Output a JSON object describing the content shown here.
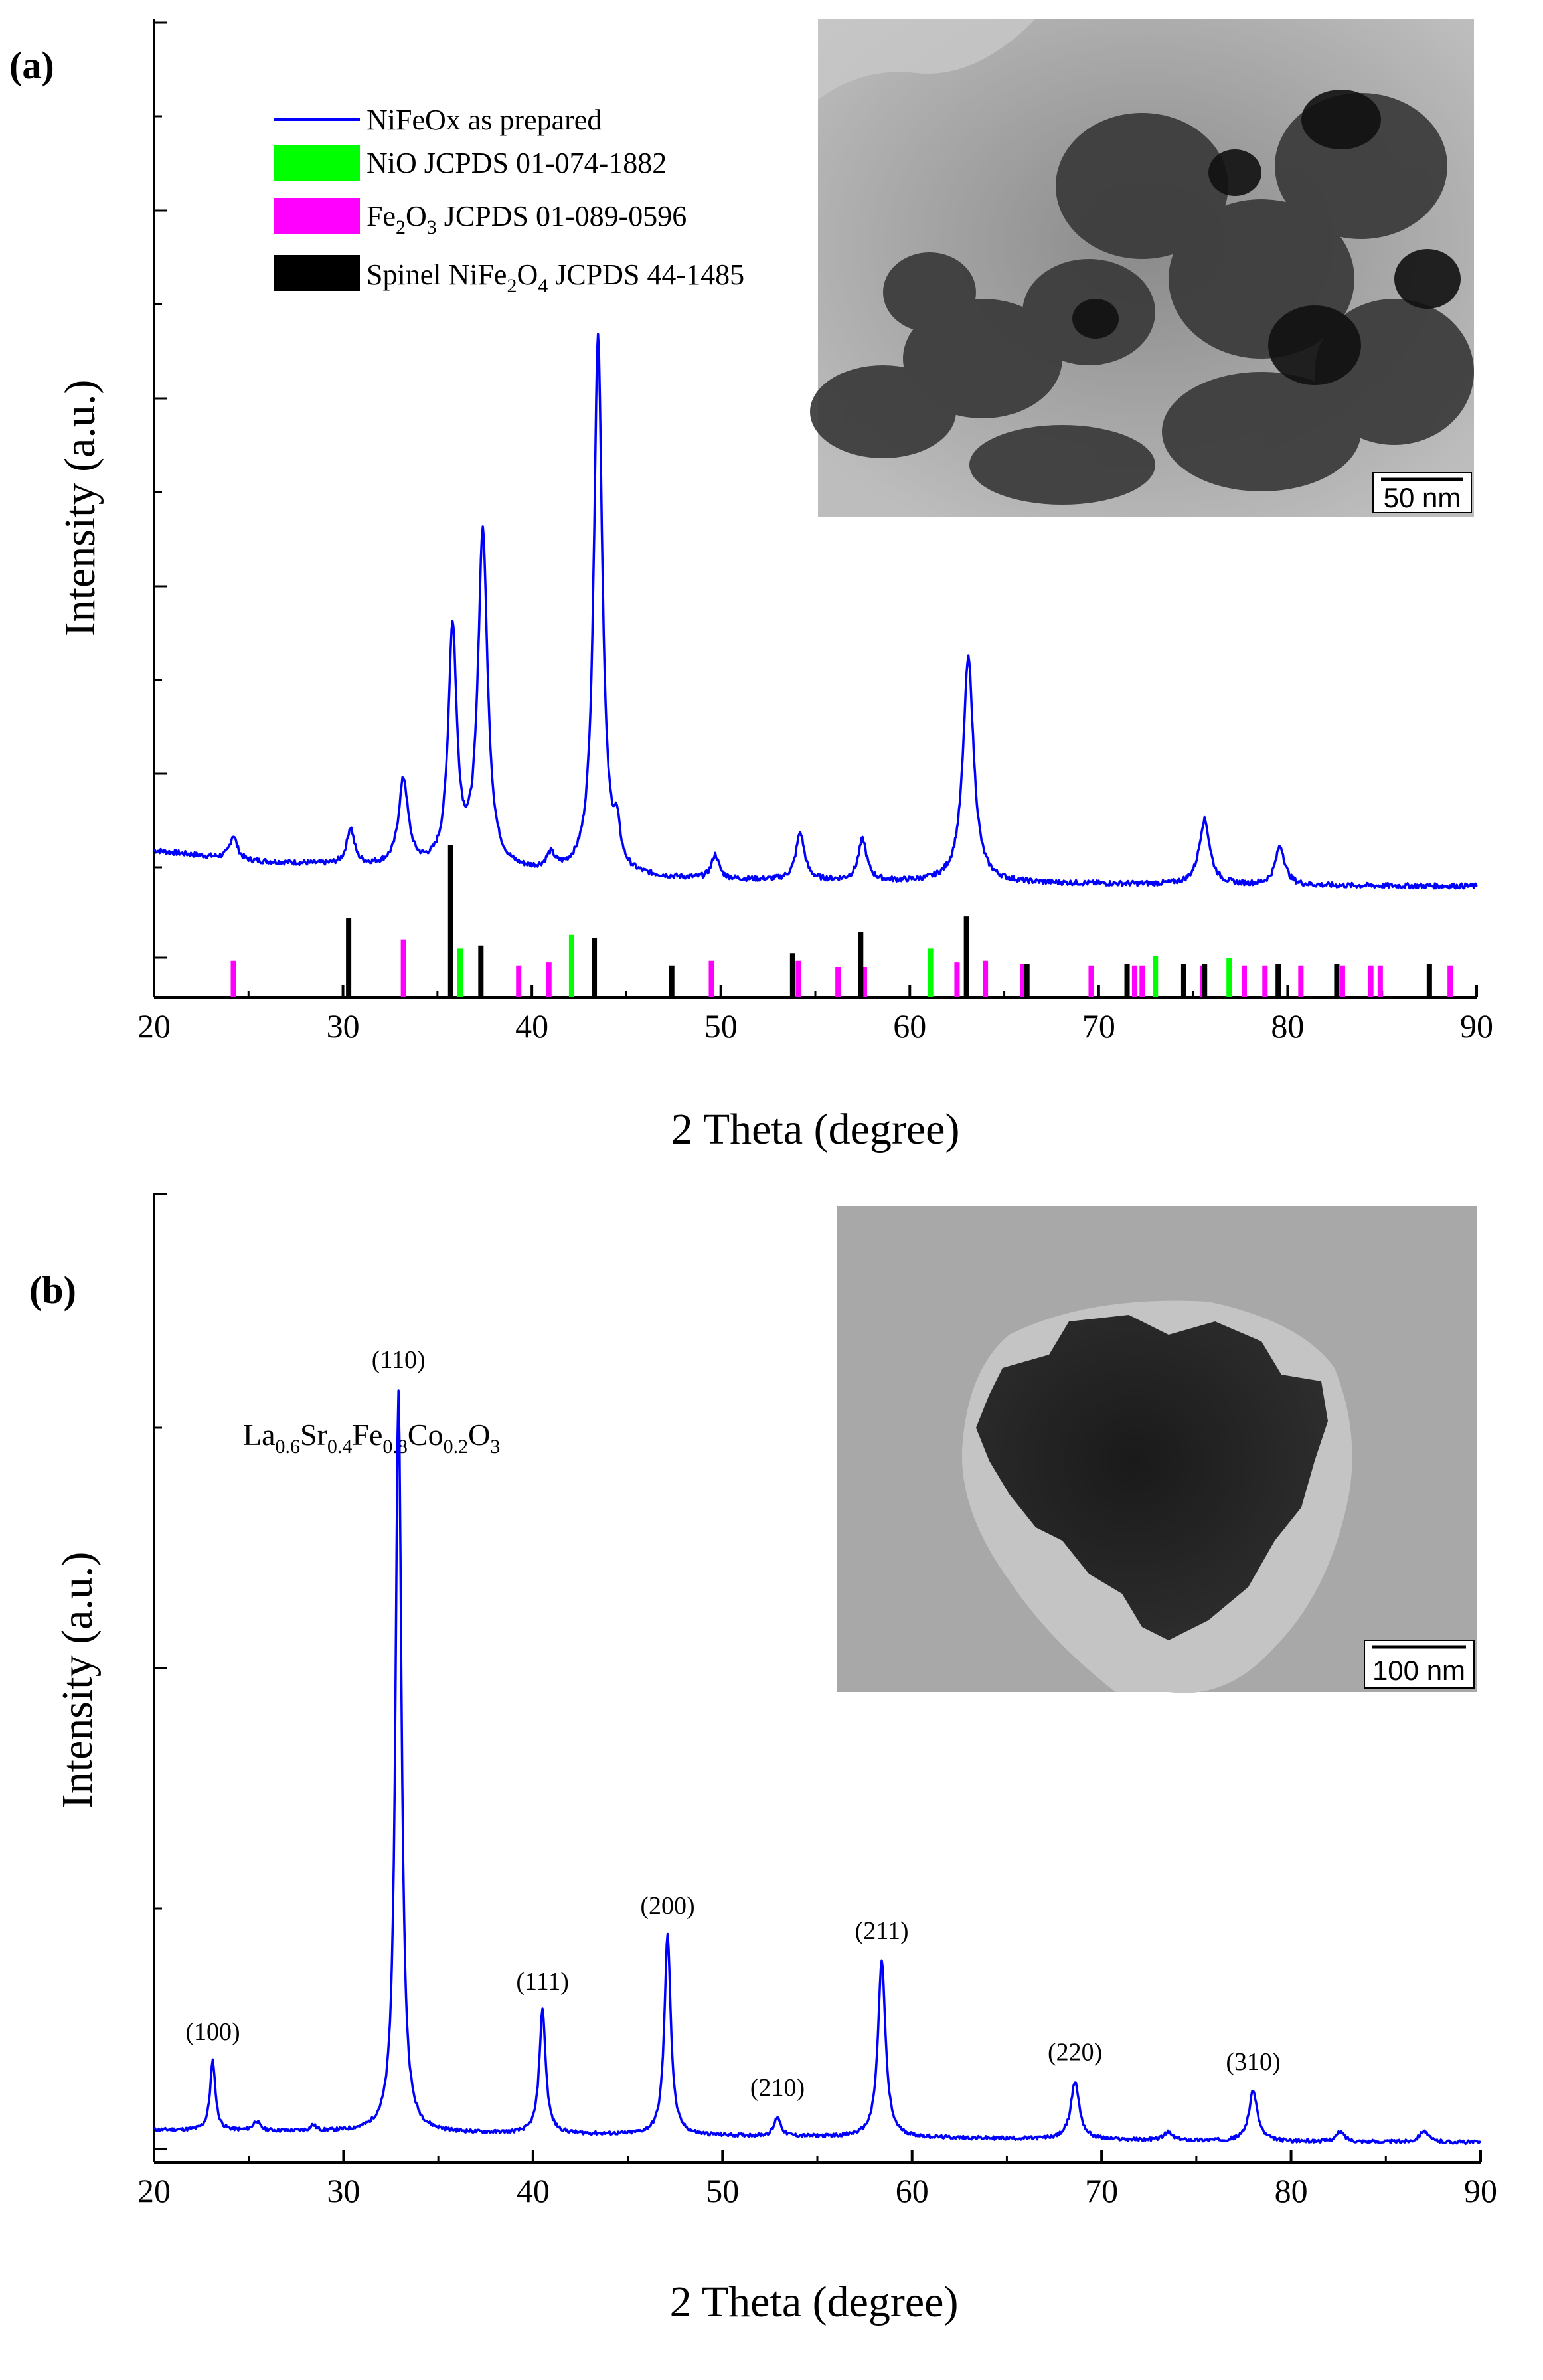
{
  "chart_data": [
    {
      "panel": "(a)",
      "type": "line",
      "xlabel": "2 Theta (degree)",
      "ylabel": "Intensity (a.u.)",
      "xlim": [
        20,
        90
      ],
      "xticks": [
        20,
        30,
        40,
        50,
        60,
        70,
        80,
        90
      ],
      "legend": [
        {
          "label": "NiFeOx as prepared",
          "color": "#0000ff",
          "kind": "line"
        },
        {
          "label_main": "NiO JCPDS 01-074-1882",
          "color": "#00ff00",
          "kind": "bar"
        },
        {
          "label_parts": [
            "Fe",
            "2",
            "O",
            "3",
            " JCPDS 01-089-0596"
          ],
          "color": "#ff00ff",
          "kind": "bar"
        },
        {
          "label_parts": [
            "Spinel NiFe",
            "2",
            "O",
            "4",
            " JCPDS 44-1485"
          ],
          "color": "#000000",
          "kind": "bar"
        }
      ],
      "series": [
        {
          "name": "NiFeOx as prepared",
          "color": "#0000ff",
          "baseline": [
            [
              20,
              18.0
            ],
            [
              25,
              15.5
            ],
            [
              30,
              14.5
            ],
            [
              35,
              13.5
            ],
            [
              40,
              12.5
            ],
            [
              45,
              11.6
            ],
            [
              50,
              11.2
            ],
            [
              60,
              10.7
            ],
            [
              70,
              10.3
            ],
            [
              80,
              9.9
            ],
            [
              90,
              9.8
            ]
          ],
          "peaks": [
            {
              "x": 24.2,
              "h": 5.5,
              "w": 0.35
            },
            {
              "x": 30.4,
              "h": 8.5,
              "w": 0.35
            },
            {
              "x": 33.2,
              "h": 20.0,
              "w": 0.45
            },
            {
              "x": 35.8,
              "h": 55.0,
              "w": 0.4
            },
            {
              "x": 37.4,
              "h": 78.0,
              "w": 0.45
            },
            {
              "x": 41.0,
              "h": 3.5,
              "w": 0.4
            },
            {
              "x": 43.5,
              "h": 125.0,
              "w": 0.4
            },
            {
              "x": 44.5,
              "h": 8.0,
              "w": 0.3
            },
            {
              "x": 49.7,
              "h": 5.5,
              "w": 0.35
            },
            {
              "x": 54.2,
              "h": 11.0,
              "w": 0.4
            },
            {
              "x": 57.5,
              "h": 9.5,
              "w": 0.4
            },
            {
              "x": 63.1,
              "h": 52.0,
              "w": 0.5
            },
            {
              "x": 75.6,
              "h": 15.0,
              "w": 0.5
            },
            {
              "x": 79.6,
              "h": 9.0,
              "w": 0.45
            }
          ]
        }
      ],
      "reference_lines": [
        {
          "name": "NiO JCPDS 01-074-1882",
          "color": "#00ff00",
          "positions": [
            [
              36.2,
              3.2
            ],
            [
              42.1,
              4.1
            ],
            [
              61.1,
              3.2
            ],
            [
              73.0,
              2.7
            ],
            [
              76.9,
              2.6
            ]
          ]
        },
        {
          "name": "Fe2O3 JCPDS 01-089-0596",
          "color": "#ff00ff",
          "positions": [
            [
              24.2,
              2.4
            ],
            [
              33.2,
              3.8
            ],
            [
              39.3,
              2.1
            ],
            [
              40.9,
              2.3
            ],
            [
              49.5,
              2.4
            ],
            [
              54.1,
              2.4
            ],
            [
              56.2,
              2.0
            ],
            [
              57.6,
              2.0
            ],
            [
              62.5,
              2.3
            ],
            [
              64.0,
              2.4
            ],
            [
              66.0,
              2.2
            ],
            [
              69.6,
              2.1
            ],
            [
              71.9,
              2.1
            ],
            [
              72.3,
              2.1
            ],
            [
              75.5,
              2.1
            ],
            [
              77.7,
              2.1
            ],
            [
              78.8,
              2.1
            ],
            [
              80.7,
              2.1
            ],
            [
              82.9,
              2.1
            ],
            [
              84.4,
              2.1
            ],
            [
              84.9,
              2.1
            ],
            [
              88.6,
              2.1
            ]
          ]
        },
        {
          "name": "Spinel NiFe2O4 JCPDS 44-1485",
          "color": "#000000",
          "positions": [
            [
              30.3,
              5.2
            ],
            [
              35.7,
              10.0
            ],
            [
              37.3,
              3.4
            ],
            [
              43.3,
              3.9
            ],
            [
              47.4,
              2.1
            ],
            [
              53.8,
              2.9
            ],
            [
              57.4,
              4.3
            ],
            [
              63.0,
              5.3
            ],
            [
              66.2,
              2.2
            ],
            [
              71.5,
              2.2
            ],
            [
              74.5,
              2.2
            ],
            [
              75.6,
              2.2
            ],
            [
              79.5,
              2.2
            ],
            [
              82.6,
              2.2
            ],
            [
              87.5,
              2.2
            ]
          ]
        }
      ],
      "inset": {
        "kind": "TEM image",
        "scale_bar": "50 nm"
      }
    },
    {
      "panel": "(b)",
      "type": "line",
      "xlabel": "2 Theta  (degree)",
      "ylabel": "Intensity  (a.u.)",
      "xlim": [
        20,
        90
      ],
      "xticks": [
        20,
        30,
        40,
        50,
        60,
        70,
        80,
        90
      ],
      "compound_parts": [
        "La",
        "0.6",
        "Sr",
        "0.4",
        "Fe",
        "0.8",
        "Co",
        "0.2",
        "O",
        "3"
      ],
      "series": [
        {
          "color": "#0000ff",
          "baseline": [
            [
              20,
              8.0
            ],
            [
              30,
              7.5
            ],
            [
              40,
              7.0
            ],
            [
              50,
              6.5
            ],
            [
              60,
              6.0
            ],
            [
              70,
              5.5
            ],
            [
              80,
              5.0
            ],
            [
              90,
              4.8
            ]
          ],
          "peaks": [
            {
              "x": 23.1,
              "h": 18.0,
              "w": 0.25
            },
            {
              "x": 25.4,
              "h": 2.5,
              "w": 0.3
            },
            {
              "x": 28.4,
              "h": 1.5,
              "w": 0.25
            },
            {
              "x": 32.9,
              "h": 193.0,
              "w": 0.28
            },
            {
              "x": 40.5,
              "h": 32.0,
              "w": 0.3
            },
            {
              "x": 47.1,
              "h": 52.0,
              "w": 0.3
            },
            {
              "x": 52.9,
              "h": 5.0,
              "w": 0.3
            },
            {
              "x": 58.4,
              "h": 46.0,
              "w": 0.35
            },
            {
              "x": 68.6,
              "h": 15.0,
              "w": 0.4
            },
            {
              "x": 73.5,
              "h": 2.0,
              "w": 0.4
            },
            {
              "x": 78.0,
              "h": 13.0,
              "w": 0.4
            },
            {
              "x": 82.6,
              "h": 2.5,
              "w": 0.4
            },
            {
              "x": 87.0,
              "h": 3.0,
              "w": 0.4
            }
          ]
        }
      ],
      "peak_labels": [
        {
          "x": 23.1,
          "text": "(100)"
        },
        {
          "x": 32.9,
          "text": "(110)"
        },
        {
          "x": 40.5,
          "text": "(111)"
        },
        {
          "x": 47.1,
          "text": "(200)"
        },
        {
          "x": 52.9,
          "text": "(210)"
        },
        {
          "x": 58.4,
          "text": "(211)"
        },
        {
          "x": 68.6,
          "text": "(220)"
        },
        {
          "x": 78.0,
          "text": "(310)"
        }
      ],
      "inset": {
        "kind": "TEM image",
        "scale_bar": "100 nm"
      }
    }
  ]
}
